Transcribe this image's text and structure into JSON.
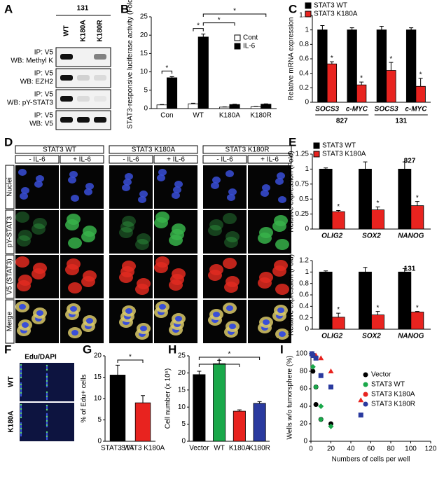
{
  "panels": {
    "labels": [
      "A",
      "B",
      "C",
      "D",
      "E",
      "F",
      "G",
      "H",
      "I"
    ],
    "A": {
      "title": "131",
      "lanes": [
        "WT",
        "K180A",
        "K180R"
      ],
      "rows": [
        {
          "ip": "IP: V5",
          "wb": "WB: Methyl K"
        },
        {
          "ip": "IP: V5",
          "wb": "WB: EZH2"
        },
        {
          "ip": "IP: V5",
          "wb": "WB: pY-STAT3"
        },
        {
          "ip": "IP: V5",
          "wb": "WB: V5"
        }
      ]
    },
    "D": {
      "groups": [
        "STAT3 WT",
        "STAT3 K180A",
        "STAT3 K180R"
      ],
      "conditions": [
        "- IL-6",
        "+ IL-6"
      ],
      "rows": [
        "Nuclei",
        "pY-STAT3",
        "V5 (STAT3)",
        "Merge"
      ]
    },
    "F": {
      "title": "Edu/DAPI",
      "rows": [
        "WT",
        "K180A"
      ]
    }
  },
  "chart_data": [
    {
      "type": "bar",
      "ylabel": "STAT3-responsive luciferase activity (Fold)",
      "categories": [
        "Con",
        "WT",
        "K180A",
        "K180R"
      ],
      "series": [
        {
          "name": "Cont",
          "color": "#ffffff",
          "values": [
            1,
            1.3,
            0.4,
            0.5
          ],
          "errors": [
            0.1,
            0.15,
            0.05,
            0.05
          ]
        },
        {
          "name": "IL-6",
          "color": "#000000",
          "values": [
            8.4,
            19.5,
            1.1,
            1.2
          ],
          "errors": [
            0.3,
            0.8,
            0.1,
            0.1
          ]
        }
      ],
      "ylim": [
        0,
        25
      ],
      "yticks": [
        0,
        5,
        10,
        15,
        20,
        25
      ],
      "annotations": [
        "*",
        "*",
        "*",
        "*"
      ]
    },
    {
      "type": "bar",
      "ylabel": "Relative mRNA expression",
      "categories": [
        "SOCS3",
        "c-MYC",
        "SOCS3",
        "c-MYC"
      ],
      "groups": [
        "827",
        "131"
      ],
      "series": [
        {
          "name": "STAT3 WT",
          "color": "#000000",
          "values": [
            1,
            1,
            1,
            1
          ],
          "errors": [
            0.06,
            0.03,
            0.05,
            0.03
          ]
        },
        {
          "name": "STAT3 K180A",
          "color": "#e8231f",
          "values": [
            0.53,
            0.24,
            0.44,
            0.22
          ],
          "errors": [
            0.03,
            0.04,
            0.11,
            0.11
          ]
        }
      ],
      "ylim": [
        0,
        1.2
      ],
      "yticks": [
        0,
        0.2,
        0.4,
        0.6,
        0.8,
        1,
        1.2
      ],
      "annotations": [
        "*",
        "*",
        "*",
        "*"
      ]
    },
    {
      "type": "bar",
      "title": "827",
      "ylabel": "Relative expression (Fold)",
      "categories": [
        "OLIG2",
        "SOX2",
        "NANOG"
      ],
      "series": [
        {
          "name": "STAT3 WT",
          "color": "#000000",
          "values": [
            1,
            1,
            1
          ],
          "errors": [
            0.02,
            0.12,
            0.12
          ]
        },
        {
          "name": "STAT3 K180A",
          "color": "#e8231f",
          "values": [
            0.29,
            0.32,
            0.39
          ],
          "errors": [
            0.02,
            0.05,
            0.07
          ]
        }
      ],
      "ylim": [
        0,
        1.25
      ],
      "yticks": [
        0,
        0.25,
        0.5,
        0.75,
        1,
        1.25
      ],
      "annotations": [
        "*",
        "*",
        "*"
      ]
    },
    {
      "type": "bar",
      "title": "131",
      "ylabel": "Relative expression (Fold)",
      "categories": [
        "OLIG2",
        "SOX2",
        "NANOG"
      ],
      "series": [
        {
          "color": "#000000",
          "values": [
            1,
            1,
            1
          ],
          "errors": [
            0.02,
            0.08,
            0.06
          ]
        },
        {
          "color": "#e8231f",
          "values": [
            0.21,
            0.25,
            0.3
          ],
          "errors": [
            0.07,
            0.06,
            0.01
          ]
        }
      ],
      "ylim": [
        0,
        1.2
      ],
      "yticks": [
        0,
        0.2,
        0.4,
        0.6,
        0.8,
        1,
        1.2
      ],
      "annotations": [
        "*",
        "*",
        "*"
      ]
    },
    {
      "type": "bar",
      "ylabel": "% of Edu+ cells",
      "categories": [
        "STAT3 WT",
        "STAT3 K180A"
      ],
      "values": [
        15.5,
        9
      ],
      "errors": [
        2.3,
        1.7
      ],
      "colors": [
        "#000000",
        "#e8231f"
      ],
      "ylim": [
        0,
        20
      ],
      "yticks": [
        0,
        5,
        10,
        15,
        20
      ],
      "annotations": [
        "*"
      ]
    },
    {
      "type": "bar",
      "ylabel": "Cell number (x 10⁵)",
      "categories": [
        "Vector",
        "WT",
        "K180A",
        "K180R"
      ],
      "values": [
        19.5,
        22.7,
        8.8,
        11.1
      ],
      "errors": [
        1,
        1,
        0.4,
        0.5
      ],
      "colors": [
        "#000000",
        "#1aa84a",
        "#e8231f",
        "#2a3a9f"
      ],
      "ylim": [
        0,
        25
      ],
      "yticks": [
        0,
        5,
        10,
        15,
        20,
        25
      ],
      "annotations": [
        "*",
        "*"
      ]
    },
    {
      "type": "scatter",
      "xlabel": "Numbers of cells per well",
      "ylabel": "Wells w/o tumorsphere (%)",
      "xlim": [
        0,
        120
      ],
      "xticks": [
        0,
        20,
        40,
        60,
        80,
        100,
        120
      ],
      "ylim": [
        0,
        100
      ],
      "yticks": [
        0,
        20,
        40,
        60,
        80,
        100
      ],
      "series": [
        {
          "name": "Vector",
          "color": "#000000",
          "marker": "circle",
          "x": [
            1,
            2,
            5,
            5,
            10,
            20
          ],
          "values": [
            100,
            80,
            62,
            42,
            25,
            20
          ]
        },
        {
          "name": "STAT3 WT",
          "color": "#1aa84a",
          "marker": "diamond",
          "x": [
            1,
            2,
            5,
            10,
            10,
            20
          ],
          "values": [
            100,
            85,
            62,
            40,
            25,
            17
          ]
        },
        {
          "name": "STAT3 K180A",
          "color": "#e8231f",
          "marker": "triangle",
          "x": [
            1,
            2,
            5,
            10,
            20,
            50
          ],
          "values": [
            100,
            100,
            98,
            95,
            80,
            47
          ]
        },
        {
          "name": "STAT3 K180R",
          "color": "#2a3a9f",
          "marker": "square",
          "x": [
            1,
            2,
            5,
            10,
            20,
            50
          ],
          "values": [
            100,
            98,
            95,
            75,
            62,
            30
          ]
        }
      ]
    }
  ]
}
